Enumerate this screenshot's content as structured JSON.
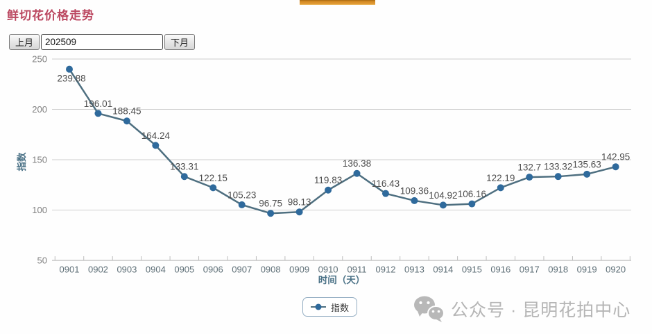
{
  "page": {
    "title": "鲜切花价格走势"
  },
  "top_tab": {
    "color": "#d88d26"
  },
  "controls": {
    "prev_button": "上月",
    "month_value": "202509",
    "next_button": "下月"
  },
  "chart_data": {
    "type": "line",
    "series_name": "指数",
    "categories": [
      "0901",
      "0902",
      "0903",
      "0904",
      "0905",
      "0906",
      "0907",
      "0908",
      "0909",
      "0910",
      "0911",
      "0912",
      "0913",
      "0914",
      "0915",
      "0916",
      "0917",
      "0918",
      "0919",
      "0920"
    ],
    "values": [
      239.88,
      196.01,
      188.45,
      164.24,
      133.31,
      122.15,
      105.23,
      96.75,
      98.13,
      119.83,
      136.38,
      116.43,
      109.36,
      104.92,
      106.16,
      122.19,
      132.7,
      133.32,
      135.63,
      142.95
    ],
    "labels": [
      "239.88",
      "196.01",
      "188.45",
      "164.24",
      "133.31",
      "122.15",
      "105.23",
      "96.75",
      "98.13",
      "119.83",
      "136.38",
      "116.43",
      "109.36",
      "104.92",
      "106.16",
      "122.19",
      "132.7",
      "133.32",
      "135.63",
      "142.95"
    ],
    "xlabel": "时间（天）",
    "ylabel": "指数",
    "ylim": [
      50,
      250
    ],
    "yticks": [
      50,
      100,
      150,
      200,
      250
    ],
    "grid": true,
    "legend_position": "bottom",
    "colors": {
      "line": "#4e6f80",
      "marker": "#2f6a9c",
      "grid": "#cfcfcf",
      "axis_line": "#aaaaaa",
      "tick_text": "#7f7f7f",
      "category_text": "#5d6e76",
      "data_label_text": "#4d4d4d",
      "axis_title_text": "#4a7186"
    }
  },
  "legend": {
    "label": "指数"
  },
  "watermark": {
    "icon": "wechat-icon",
    "text": "公众号 · 昆明花拍中心"
  }
}
